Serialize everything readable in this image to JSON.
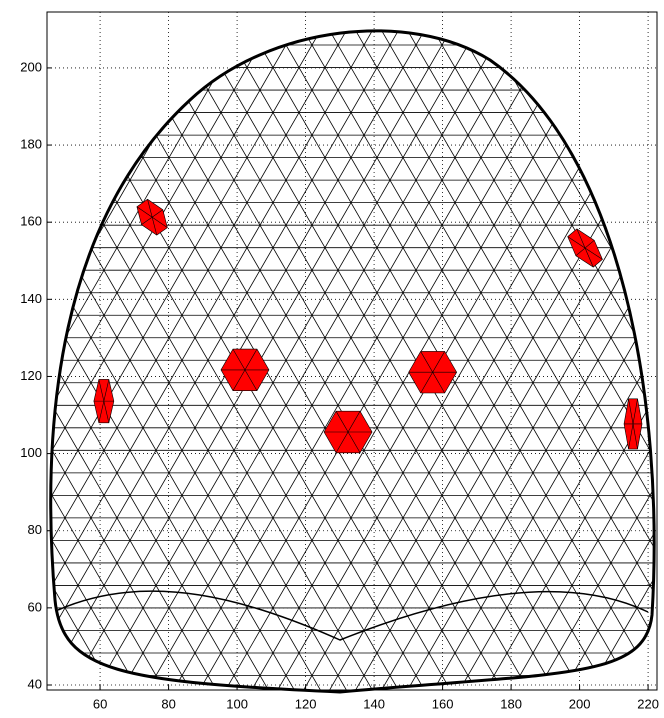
{
  "chart_data": {
    "type": "mesh",
    "xlim": [
      44.5,
      222.6
    ],
    "ylim": [
      38.7,
      214.5
    ],
    "xticks": [
      60,
      80,
      100,
      120,
      140,
      160,
      180,
      200,
      220
    ],
    "yticks": [
      40,
      60,
      80,
      100,
      120,
      140,
      160,
      180,
      200
    ],
    "grid": true,
    "mesh_color": "#000000",
    "color": "#ff0000",
    "x": [
      75.2,
      102.3,
      157.1,
      132.4,
      61.1,
      201.6,
      215.6
    ],
    "values": [
      161.3,
      121.7,
      121.1,
      105.6,
      113.6,
      153.3,
      107.7
    ]
  }
}
